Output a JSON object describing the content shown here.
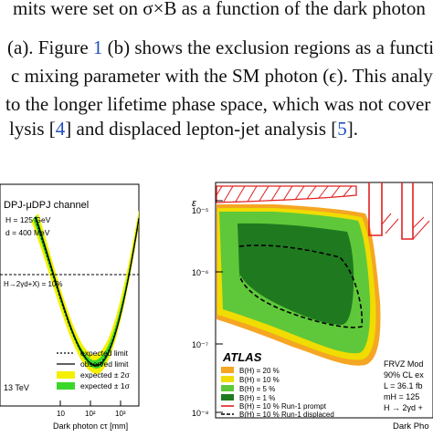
{
  "paragraph": {
    "line1": "mits were set on σ×B as a function of the dark photon",
    "line2_pre": "(a). Figure ",
    "line2_ref": "1",
    "line2_post": " (b) shows the exclusion regions as a functi",
    "line3": "c mixing parameter with the SM photon (ϵ). This analy",
    "line4": " to the longer lifetime phase space, which was not cover",
    "line5_pre": "lysis [",
    "line5_ref1": "4",
    "line5_mid": "] and displaced lepton-jet analysis [",
    "line5_ref2": "5",
    "line5_post": "]."
  },
  "left_panel": {
    "channel": "DPJ-μDPJ channel",
    "mh": "H = 125 GeV",
    "mgd": "d = 400 MeV",
    "ref_line_label": "H→2γd+X) = 10%",
    "energy": "13 TeV",
    "xlabel": "Dark photon cτ [mm]",
    "legend": [
      "expected limit",
      "observed limit",
      "expected ± 2σ",
      "expected ± 1σ"
    ],
    "x_ticks": [
      "10",
      "10²",
      "10³"
    ],
    "colors": {
      "band2": "#f4f000",
      "band1": "#3ad72a",
      "line": "#000000"
    }
  },
  "right_panel": {
    "ylabel": "ε",
    "y_ticks": [
      "10⁻⁵",
      "10⁻⁶",
      "10⁻⁷",
      "10⁻⁸"
    ],
    "xlabel": "Dark Pho",
    "atlas": "ATLAS",
    "info": [
      "FRVZ Mod",
      "90% CL ex",
      "L = 36.1 fb",
      "mH = 125",
      "H → 2γd +"
    ],
    "legend": [
      {
        "label": "B(H) = 20 %",
        "color": "#f5a623"
      },
      {
        "label": "B(H) = 10 %",
        "color": "#f0dc00"
      },
      {
        "label": "B(H) = 5 %",
        "color": "#5fc83a"
      },
      {
        "label": "B(H) = 1 %",
        "color": "#1f7a1f"
      },
      {
        "label": "B(H) = 10 % Run-1 prompt",
        "color": "#e02020"
      },
      {
        "label": "B(H) = 10 % Run-1 displaced",
        "color": "#000000"
      }
    ]
  }
}
